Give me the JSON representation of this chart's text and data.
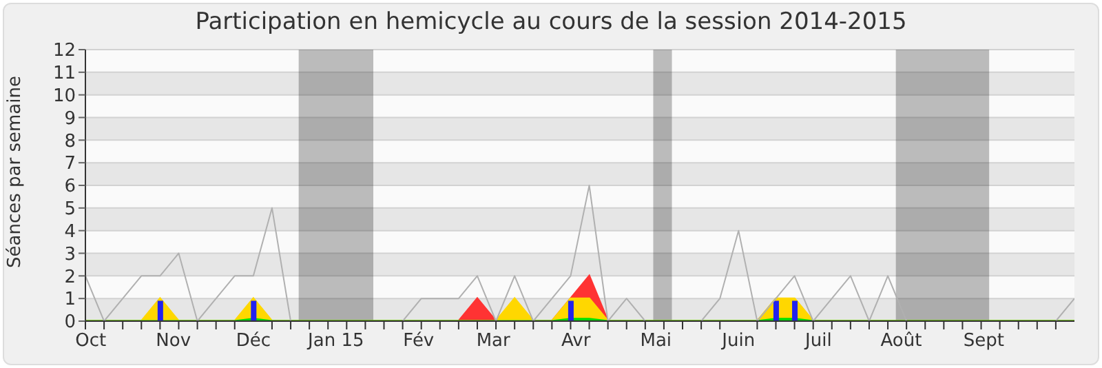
{
  "chart_data": {
    "type": "area",
    "title": "Participation en hemicycle au cours de la session 2014-2015",
    "ylabel": "Séances par semaine",
    "x": [
      "2014-09-29",
      "2014-10-06",
      "2014-10-13",
      "2014-10-20",
      "2014-10-27",
      "2014-11-03",
      "2014-11-10",
      "2014-11-17",
      "2014-11-24",
      "2014-12-01",
      "2014-12-08",
      "2014-12-15",
      "2014-12-22",
      "2014-12-29",
      "2015-01-05",
      "2015-01-12",
      "2015-01-19",
      "2015-01-26",
      "2015-02-02",
      "2015-02-09",
      "2015-02-16",
      "2015-02-23",
      "2015-03-02",
      "2015-03-09",
      "2015-03-16",
      "2015-03-23",
      "2015-03-30",
      "2015-04-06",
      "2015-04-13",
      "2015-04-20",
      "2015-04-27",
      "2015-05-04",
      "2015-05-11",
      "2015-05-18",
      "2015-05-25",
      "2015-06-01",
      "2015-06-08",
      "2015-06-15",
      "2015-06-22",
      "2015-06-29",
      "2015-07-06",
      "2015-07-13",
      "2015-07-20",
      "2015-07-27",
      "2015-08-03",
      "2015-08-10",
      "2015-08-17",
      "2015-08-24",
      "2015-08-31",
      "2015-09-07",
      "2015-09-14",
      "2015-09-21",
      "2015-09-28",
      "2015-10-05"
    ],
    "series": [
      {
        "type": "line",
        "color": "#b0b0b0",
        "values": [
          2,
          0,
          1,
          2,
          2,
          3,
          0,
          1,
          2,
          2,
          5,
          0,
          0,
          0,
          0,
          0,
          0,
          0,
          1,
          1,
          1,
          2,
          0,
          2,
          0,
          1,
          2,
          6,
          0,
          1,
          0,
          0,
          0,
          0,
          1,
          4,
          0,
          1,
          2,
          0,
          1,
          2,
          0,
          2,
          0,
          0,
          0,
          0,
          0,
          0,
          0,
          0,
          0,
          1
        ]
      },
      {
        "color": "#ff3333",
        "values": [
          0,
          0,
          0,
          0,
          0,
          0,
          0,
          0,
          0,
          0,
          0,
          0,
          0,
          0,
          0,
          0,
          0,
          0,
          0,
          0,
          0,
          1,
          0,
          0,
          0,
          0,
          1,
          2,
          0,
          0,
          0,
          0,
          0,
          0,
          0,
          0,
          0,
          0,
          0,
          0,
          0,
          0,
          0,
          0,
          0,
          0,
          0,
          0,
          0,
          0,
          0,
          0,
          0,
          0
        ]
      },
      {
        "color": "#ffd700",
        "values": [
          0,
          0,
          0,
          0,
          1,
          0,
          0,
          0,
          0,
          1,
          0,
          0,
          0,
          0,
          0,
          0,
          0,
          0,
          0,
          0,
          0,
          0,
          0,
          1,
          0,
          0,
          1,
          1,
          0,
          0,
          0,
          0,
          0,
          0,
          0,
          0,
          0,
          1,
          1,
          0,
          0,
          0,
          0,
          0,
          0,
          0,
          0,
          0,
          0,
          0,
          0,
          0,
          0,
          0
        ]
      },
      {
        "color": "#00e000",
        "values": [
          0,
          0,
          0,
          0,
          0,
          0,
          0,
          0,
          0,
          0.1,
          0,
          0,
          0,
          0,
          0,
          0,
          0,
          0,
          0,
          0,
          0,
          0,
          0,
          0,
          0,
          0,
          0.1,
          0.1,
          0,
          0,
          0,
          0,
          0,
          0,
          0,
          0,
          0,
          0.1,
          0.1,
          0,
          0,
          0,
          0,
          0,
          0,
          0,
          0,
          0,
          0,
          0,
          0,
          0,
          0,
          0
        ]
      },
      {
        "type": "bar",
        "color": "#2222ee",
        "values": [
          null,
          null,
          null,
          null,
          0.9,
          null,
          null,
          null,
          null,
          0.9,
          null,
          null,
          null,
          null,
          null,
          null,
          null,
          null,
          null,
          null,
          null,
          null,
          null,
          null,
          null,
          null,
          0.9,
          null,
          null,
          null,
          null,
          null,
          null,
          null,
          null,
          null,
          null,
          0.9,
          0.9,
          null,
          null,
          null,
          null,
          null,
          null,
          null,
          null,
          null,
          null,
          null,
          null,
          null,
          null,
          null
        ]
      }
    ],
    "xlim": [
      "2014-09-29",
      "2015-10-05"
    ],
    "xticks": [
      {
        "value": "2014-09-29",
        "label": null
      },
      {
        "value": "2014-10-01",
        "label": "Oct"
      },
      {
        "value": "2014-10-06",
        "label": null
      },
      {
        "value": "2014-10-13",
        "label": null
      },
      {
        "value": "2014-10-20",
        "label": null
      },
      {
        "value": "2014-10-27",
        "label": null
      },
      {
        "value": "2014-11-01",
        "label": "Nov"
      },
      {
        "value": "2014-11-03",
        "label": null
      },
      {
        "value": "2014-11-10",
        "label": null
      },
      {
        "value": "2014-11-17",
        "label": null
      },
      {
        "value": "2014-11-24",
        "label": null
      },
      {
        "value": "2014-12-01",
        "label": "Déc"
      },
      {
        "value": "2014-12-08",
        "label": null
      },
      {
        "value": "2014-12-15",
        "label": null
      },
      {
        "value": "2014-12-22",
        "label": null
      },
      {
        "value": "2014-12-29",
        "label": null
      },
      {
        "value": "2015-01-01",
        "label": "Jan 15"
      },
      {
        "value": "2015-01-05",
        "label": null
      },
      {
        "value": "2015-01-12",
        "label": null
      },
      {
        "value": "2015-01-19",
        "label": null
      },
      {
        "value": "2015-01-26",
        "label": null
      },
      {
        "value": "2015-02-01",
        "label": "Fév"
      },
      {
        "value": "2015-02-02",
        "label": null
      },
      {
        "value": "2015-02-09",
        "label": null
      },
      {
        "value": "2015-02-16",
        "label": null
      },
      {
        "value": "2015-02-23",
        "label": null
      },
      {
        "value": "2015-03-01",
        "label": "Mar"
      },
      {
        "value": "2015-03-02",
        "label": null
      },
      {
        "value": "2015-03-09",
        "label": null
      },
      {
        "value": "2015-03-16",
        "label": null
      },
      {
        "value": "2015-03-23",
        "label": null
      },
      {
        "value": "2015-03-30",
        "label": null
      },
      {
        "value": "2015-04-01",
        "label": "Avr"
      },
      {
        "value": "2015-04-06",
        "label": null
      },
      {
        "value": "2015-04-13",
        "label": null
      },
      {
        "value": "2015-04-20",
        "label": null
      },
      {
        "value": "2015-04-27",
        "label": null
      },
      {
        "value": "2015-05-01",
        "label": "Mai"
      },
      {
        "value": "2015-05-04",
        "label": null
      },
      {
        "value": "2015-05-11",
        "label": null
      },
      {
        "value": "2015-05-18",
        "label": null
      },
      {
        "value": "2015-05-25",
        "label": null
      },
      {
        "value": "2015-06-01",
        "label": "Juin"
      },
      {
        "value": "2015-06-08",
        "label": null
      },
      {
        "value": "2015-06-15",
        "label": null
      },
      {
        "value": "2015-06-22",
        "label": null
      },
      {
        "value": "2015-06-29",
        "label": null
      },
      {
        "value": "2015-07-01",
        "label": "Juil"
      },
      {
        "value": "2015-07-06",
        "label": null
      },
      {
        "value": "2015-07-13",
        "label": null
      },
      {
        "value": "2015-07-20",
        "label": null
      },
      {
        "value": "2015-07-27",
        "label": null
      },
      {
        "value": "2015-08-01",
        "label": "Août"
      },
      {
        "value": "2015-08-03",
        "label": null
      },
      {
        "value": "2015-08-10",
        "label": null
      },
      {
        "value": "2015-08-17",
        "label": null
      },
      {
        "value": "2015-08-24",
        "label": null
      },
      {
        "value": "2015-08-31",
        "label": null
      },
      {
        "value": "2015-09-01",
        "label": "Sept"
      },
      {
        "value": "2015-09-07",
        "label": null
      },
      {
        "value": "2015-09-14",
        "label": null
      },
      {
        "value": "2015-09-21",
        "label": null
      },
      {
        "value": "2015-09-28",
        "label": null
      }
    ],
    "ylim": [
      0,
      12
    ],
    "yticks": [
      0,
      1,
      2,
      3,
      4,
      5,
      6,
      7,
      8,
      9,
      10,
      11,
      12
    ],
    "bands": [
      {
        "axis": "x",
        "from": "2014-12-18",
        "to": "2015-01-15"
      },
      {
        "axis": "x",
        "from": "2015-04-30",
        "to": "2015-05-07"
      },
      {
        "axis": "x",
        "from": "2015-07-30",
        "to": "2015-09-03"
      }
    ],
    "grid": "y",
    "legend": false
  }
}
